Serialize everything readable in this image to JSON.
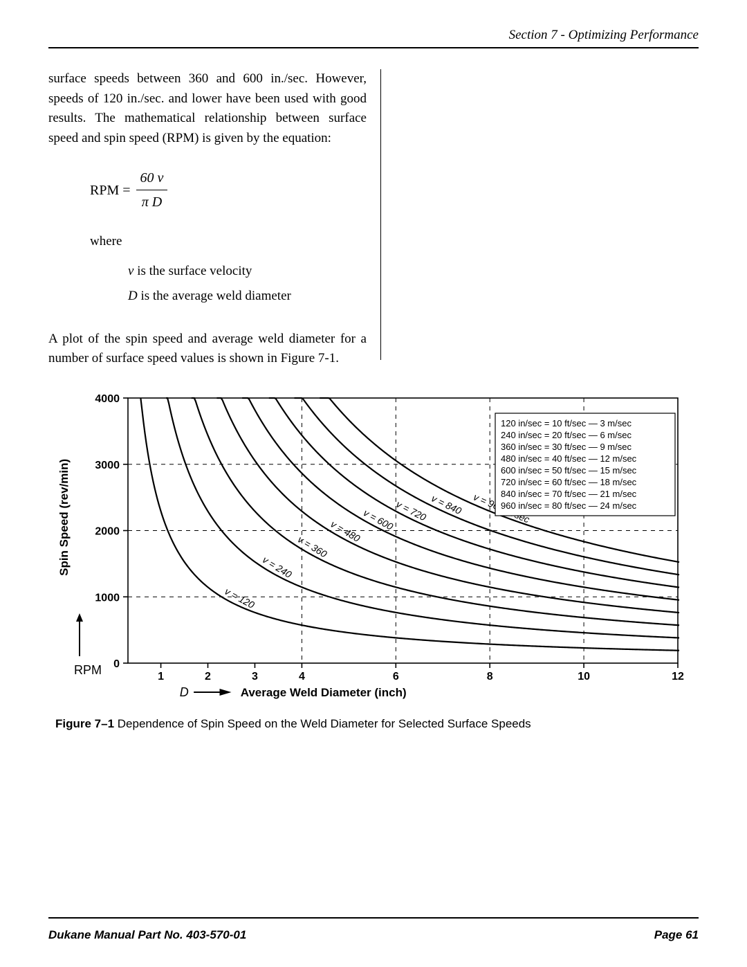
{
  "header": {
    "section_title": "Section 7 - Optimizing Performance"
  },
  "body": {
    "para1": "surface speeds between 360 and 600 in./sec.  However, speeds of 120 in./sec. and lower have been used with good results.  The mathematical relationship between surface speed and spin speed (RPM) is given by the equation:",
    "equation": {
      "lhs": "RPM =",
      "numerator": "60 v",
      "denominator": "π D"
    },
    "where_label": "where",
    "defs": {
      "v": "v is the surface velocity",
      "D": "D is the average weld diameter"
    },
    "para2": "A plot of the spin speed and average weld diameter for a number of surface speed values is shown in Figure 7-1."
  },
  "chart": {
    "type": "line",
    "title": "",
    "ylabel": "Spin Speed (rev/min)",
    "ylabel_sub": "RPM",
    "xlabel_prefix": "D",
    "xlabel": "Average Weld Diameter (inch)",
    "xlim": [
      0,
      12
    ],
    "ylim": [
      0,
      4000
    ],
    "xticks": [
      1,
      2,
      3,
      4,
      6,
      8,
      10,
      12
    ],
    "yticks": [
      0,
      1000,
      2000,
      3000,
      4000
    ],
    "grid_xticks": [
      4,
      6,
      8,
      10
    ],
    "grid_yticks": [
      1000,
      2000,
      3000
    ],
    "grid_style": "dashed",
    "background_color": "#ffffff",
    "axis_color": "#000000",
    "grid_color": "#000000",
    "line_color": "#000000",
    "line_width": 2.2,
    "axis_fontsize": 16,
    "tick_fontsize": 16,
    "label_fontsize": 17,
    "y_label_fontweight": "bold",
    "series_labels": [
      "v = 120",
      "v = 240",
      "v = 360",
      "v = 480",
      "v = 600",
      "v = 720",
      "v = 840",
      "v = 960 in/sec"
    ],
    "series_values_insec": [
      120,
      240,
      360,
      480,
      600,
      720,
      840,
      960
    ],
    "legend": {
      "title": "",
      "rows": [
        "120 in/sec = 10 ft/sec —   3 m/sec",
        "240 in/sec = 20 ft/sec —   6 m/sec",
        "360 in/sec = 30 ft/sec —   9 m/sec",
        "480 in/sec = 40 ft/sec — 12 m/sec",
        "600 in/sec = 50 ft/sec — 15 m/sec",
        "720 in/sec = 60 ft/sec — 18 m/sec",
        "840 in/sec = 70 ft/sec — 21 m/sec",
        "960 in/sec = 80 ft/sec — 24 m/sec"
      ],
      "box_stroke": "#000000",
      "box_fill": "#ffffff",
      "fontsize": 13
    },
    "caption_bold": "Figure 7–1",
    "caption_rest": "Dependence of Spin Speed on the Weld Diameter for Selected Surface Speeds"
  },
  "footer": {
    "left": "Dukane Manual Part No. 403-570-01",
    "right": "Page   61"
  }
}
